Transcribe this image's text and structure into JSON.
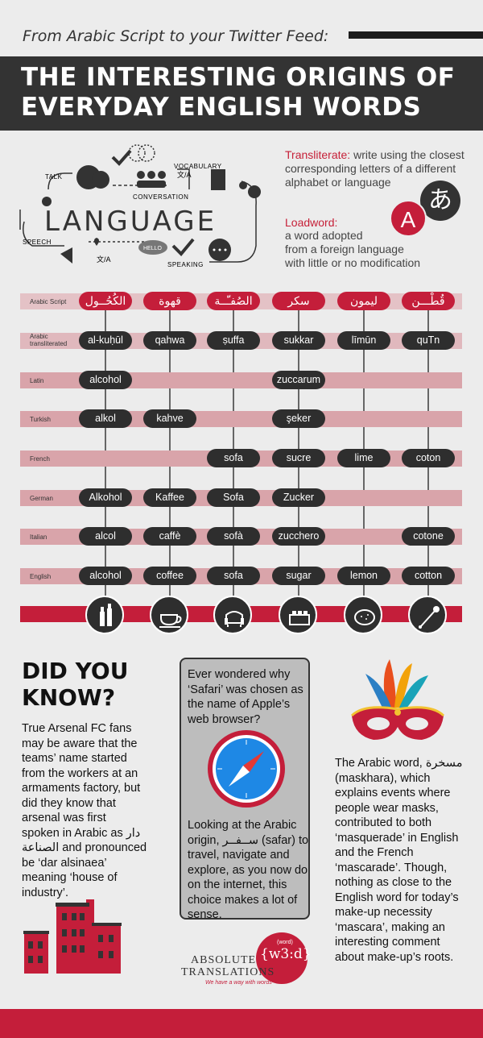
{
  "header": {
    "subtitle": "From Arabic Script to your Twitter Feed:",
    "title_line1": "THE INTERESTING ORIGINS OF",
    "title_line2": "EVERYDAY ENGLISH WORDS"
  },
  "language_art": {
    "word": "LANGUAGE",
    "labels": {
      "talk": "TALK",
      "vocabulary": "VOCABULARY",
      "conversation": "CONVERSATION",
      "speech": "SPEECH",
      "hello": "HELLO",
      "speaking": "SPEAKING"
    }
  },
  "definitions": {
    "transliterate_term": "Transliterate:",
    "transliterate_line1": " write using the closest",
    "transliterate_line2": "corresponding letters of a different",
    "transliterate_line3": "alphabet or language",
    "loanword_term": "Loadword:",
    "loanword_line1": "a word adopted",
    "loanword_line2": "from a foreign language",
    "loanword_line3": "with little or no modification",
    "badge_a": "A",
    "badge_jp": "あ"
  },
  "etymology": {
    "rows": [
      {
        "label": "Arabic Script",
        "cells": [
          "الكُحُــول",
          "قهوة",
          "الصُفـّــة",
          "سكر",
          "ليمون",
          "قُطْـــن"
        ]
      },
      {
        "label": "Arabic transliterated",
        "cells": [
          "al-kuḥūl",
          "qahwa",
          "ṣuffa",
          "sukkar",
          "līmūn",
          "quTn"
        ]
      },
      {
        "label": "Latin",
        "cells": [
          "alcohol",
          "",
          "",
          "zuccarum",
          "",
          ""
        ]
      },
      {
        "label": "Turkish",
        "cells": [
          "alkol",
          "kahve",
          "",
          "şeker",
          "",
          ""
        ]
      },
      {
        "label": "French",
        "cells": [
          "",
          "",
          "sofa",
          "sucre",
          "lime",
          "coton"
        ]
      },
      {
        "label": "German",
        "cells": [
          "Alkohol",
          "Kaffee",
          "Sofa",
          "Zucker",
          "",
          ""
        ]
      },
      {
        "label": "Italian",
        "cells": [
          "alcol",
          "caffè",
          "sofà",
          "zucchero",
          "",
          "cotone"
        ]
      },
      {
        "label": "English",
        "cells": [
          "alcohol",
          "coffee",
          "sofa",
          "sugar",
          "lemon",
          "cotton"
        ]
      }
    ],
    "icons": [
      "bottles-icon",
      "coffee-cup-icon",
      "armchair-icon",
      "sugar-box-icon",
      "lemon-icon",
      "cotton-swab-icon"
    ]
  },
  "did_you_know": {
    "title_line1": "DID YOU",
    "title_line2": "KNOW?",
    "lines": [
      "True Arsenal FC fans",
      "may be aware that the",
      "teams’ name started",
      "from the workers at an",
      "armaments factory, but",
      "did they know that",
      "arsenal was first",
      "spoken in Arabic as دار",
      "الصناعة and pronounced",
      "be ‘dar alsinaea’",
      "meaning ‘house of",
      "industry’."
    ]
  },
  "safari": {
    "question_lines": [
      "Ever wondered why",
      "‘Safari’ was chosen as",
      "the name of Apple’s",
      "web browser?"
    ],
    "answer_lines": [
      "Looking at the Arabic",
      "origin, ســفــر (safar) to",
      "travel, navigate and",
      "explore, as you now do",
      "on the internet, this",
      "choice makes a lot of",
      "sense."
    ]
  },
  "mascara": {
    "lines": [
      "The Arabic word, مسخرة",
      "(maskhara), which",
      "explains events where",
      "people wear masks,",
      "contributed to both",
      "‘masquerade’ in English",
      "and the French",
      "‘mascarade’. Though,",
      "nothing as close to the",
      "English word for today’s",
      "make-up necessity",
      "‘mascara’, making an",
      "interesting comment",
      "about make-up’s roots."
    ]
  },
  "logo": {
    "line1": "ABSOLUTE",
    "line2": "TRANSLATIONS",
    "tagline": "We have a way with words",
    "badge": "{w3:d}",
    "badge_small": "(word)"
  },
  "colors": {
    "accent": "#c41e3a",
    "dark": "#2e2e2e",
    "stripe": "#d9a4aa",
    "background": "#ececec"
  }
}
